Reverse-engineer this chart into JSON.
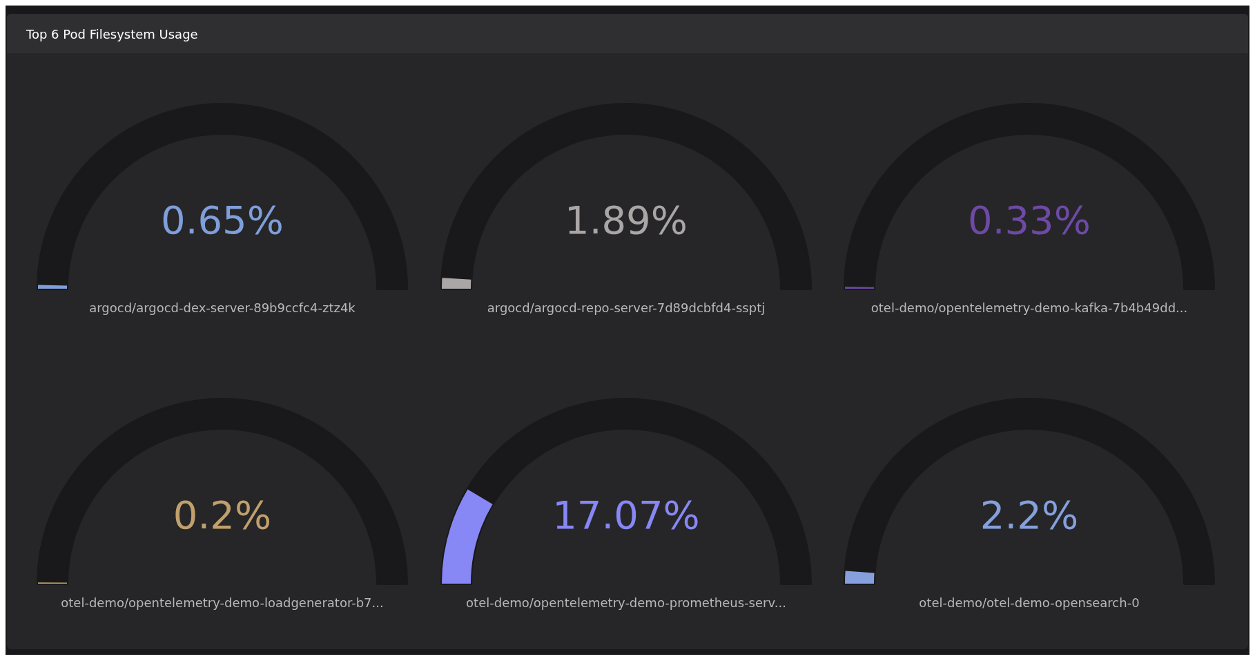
{
  "chart_data": {
    "type": "other",
    "title": "Top 6 Pod Filesystem Usage",
    "categories": [
      "argocd/argocd-dex-server-89b9ccfc4-ztz4k",
      "argocd/argocd-repo-server-7d89dcbfd4-ssptj",
      "otel-demo/opentelemetry-demo-kafka-7b4b49dd...",
      "otel-demo/opentelemetry-demo-loadgenerator-b7...",
      "otel-demo/opentelemetry-demo-prometheus-serv...",
      "otel-demo/otel-demo-opensearch-0"
    ],
    "values": [
      0.65,
      1.89,
      0.33,
      0.2,
      17.07,
      2.2
    ],
    "value_labels": [
      "0.65%",
      "1.89%",
      "0.33%",
      "0.2%",
      "17.07%",
      "2.2%"
    ],
    "colors": [
      "#7f9fdb",
      "#aaa6a6",
      "#6e4aa6",
      "#c0a06c",
      "#8787f5",
      "#85a0dc"
    ]
  }
}
